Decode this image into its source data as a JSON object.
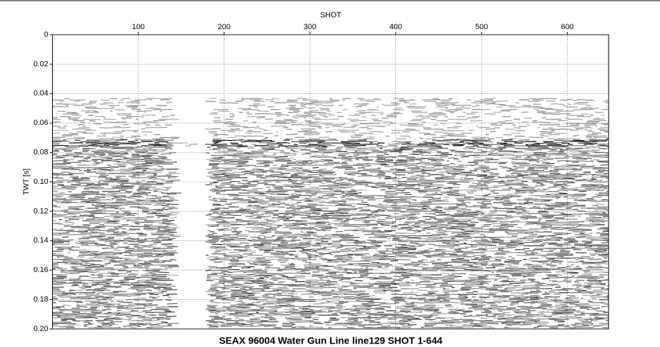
{
  "chart_data": {
    "type": "seismic",
    "title": "SEAX 96004 Water Gun Line line129 SHOT 1-644",
    "x_label": "SHOT",
    "y_label": "TWT [s]",
    "xlim": [
      0,
      648
    ],
    "xticks": [
      100,
      200,
      300,
      400,
      500,
      600
    ],
    "ylim": [
      0,
      0.2
    ],
    "yticks": [
      0,
      0.02,
      0.04,
      0.06,
      0.08,
      {
        "value": 0.1,
        "label": "0.10"
      },
      0.12,
      0.14,
      0.16,
      0.18,
      {
        "value": 0.2,
        "label": "0.20"
      }
    ],
    "grid": true
  }
}
